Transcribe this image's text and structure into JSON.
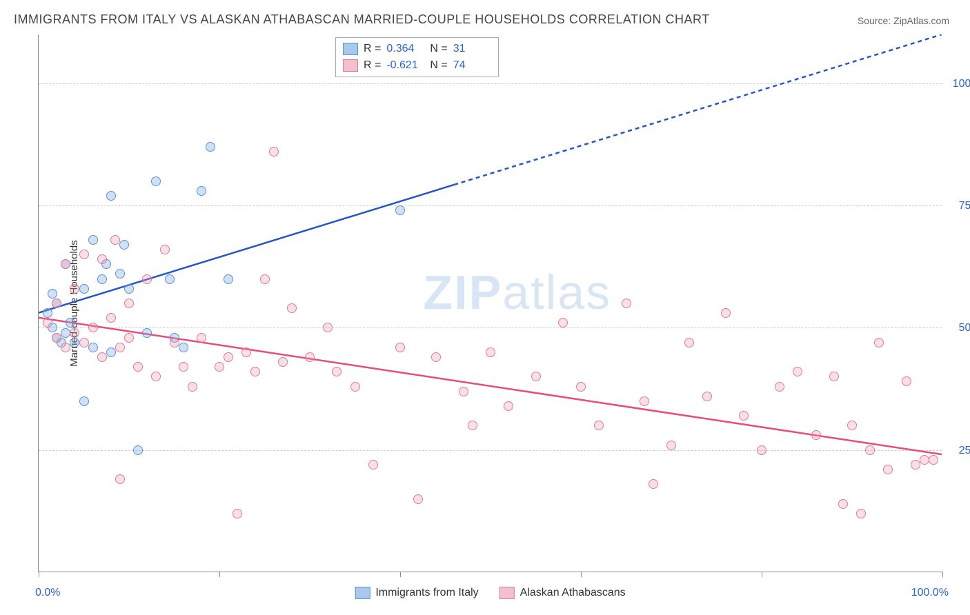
{
  "title": "IMMIGRANTS FROM ITALY VS ALASKAN ATHABASCAN MARRIED-COUPLE HOUSEHOLDS CORRELATION CHART",
  "source": "Source: ZipAtlas.com",
  "watermark_bold": "ZIP",
  "watermark_rest": "atlas",
  "y_axis_title": "Married-couple Households",
  "chart": {
    "type": "scatter-correlation",
    "background_color": "#ffffff",
    "grid_color": "#cccccc",
    "axis_color": "#888888",
    "tick_label_color": "#2962d9",
    "tick_fontsize": 16,
    "title_color": "#444444",
    "title_fontsize": 18,
    "xlim": [
      0,
      100
    ],
    "ylim": [
      0,
      110
    ],
    "x_ticks": [
      0,
      20,
      40,
      60,
      80,
      100
    ],
    "x_tick_labels": {
      "0": "0.0%",
      "100": "100.0%"
    },
    "y_gridlines": [
      25,
      50,
      75,
      100
    ],
    "y_tick_labels": {
      "25": "25.0%",
      "50": "50.0%",
      "75": "75.0%",
      "100": "100.0%"
    },
    "point_radius": 7,
    "point_stroke_width": 1.5,
    "series": [
      {
        "name": "Immigrants from Italy",
        "fill_color": "rgba(120,170,230,0.35)",
        "stroke_color": "#5a93d4",
        "swatch_fill": "#a9c9ec",
        "swatch_border": "#5a93d4",
        "R": "0.364",
        "N": "31",
        "trend": {
          "start": [
            0,
            53
          ],
          "end": [
            100,
            110
          ],
          "solid_until_x": 46,
          "color": "#2456c7",
          "width": 2.5,
          "dash": "6,5"
        },
        "points": [
          [
            1,
            53
          ],
          [
            1.5,
            50
          ],
          [
            1.5,
            57
          ],
          [
            2,
            55
          ],
          [
            2,
            48
          ],
          [
            2.5,
            47
          ],
          [
            3,
            49
          ],
          [
            3,
            63
          ],
          [
            3.5,
            51
          ],
          [
            4,
            47
          ],
          [
            5,
            58
          ],
          [
            5,
            35
          ],
          [
            6,
            68
          ],
          [
            6,
            46
          ],
          [
            7,
            60
          ],
          [
            7.5,
            63
          ],
          [
            8,
            45
          ],
          [
            8,
            77
          ],
          [
            9,
            61
          ],
          [
            9.5,
            67
          ],
          [
            10,
            58
          ],
          [
            11,
            25
          ],
          [
            12,
            49
          ],
          [
            13,
            80
          ],
          [
            14.5,
            60
          ],
          [
            15,
            48
          ],
          [
            16,
            46
          ],
          [
            18,
            78
          ],
          [
            19,
            87
          ],
          [
            21,
            60
          ],
          [
            40,
            74
          ]
        ]
      },
      {
        "name": "Alaskan Athabascans",
        "fill_color": "rgba(240,150,175,0.30)",
        "stroke_color": "#e07a9a",
        "swatch_fill": "#f3c0ce",
        "swatch_border": "#e07a9a",
        "R": "-0.621",
        "N": "74",
        "trend": {
          "start": [
            0,
            52
          ],
          "end": [
            100,
            24
          ],
          "solid_until_x": 100,
          "color": "#e94b7a",
          "width": 2.5,
          "dash": "none"
        },
        "points": [
          [
            1,
            51
          ],
          [
            2,
            48
          ],
          [
            2,
            55
          ],
          [
            3,
            46
          ],
          [
            3,
            63
          ],
          [
            4,
            49
          ],
          [
            4,
            58
          ],
          [
            5,
            47
          ],
          [
            5,
            65
          ],
          [
            6,
            50
          ],
          [
            7,
            44
          ],
          [
            7,
            64
          ],
          [
            8,
            52
          ],
          [
            8.5,
            68
          ],
          [
            9,
            46
          ],
          [
            9,
            19
          ],
          [
            10,
            48
          ],
          [
            10,
            55
          ],
          [
            11,
            42
          ],
          [
            12,
            60
          ],
          [
            13,
            40
          ],
          [
            14,
            66
          ],
          [
            15,
            47
          ],
          [
            16,
            42
          ],
          [
            17,
            38
          ],
          [
            18,
            48
          ],
          [
            20,
            42
          ],
          [
            21,
            44
          ],
          [
            22,
            12
          ],
          [
            23,
            45
          ],
          [
            24,
            41
          ],
          [
            25,
            60
          ],
          [
            26,
            86
          ],
          [
            27,
            43
          ],
          [
            28,
            54
          ],
          [
            30,
            44
          ],
          [
            32,
            50
          ],
          [
            33,
            41
          ],
          [
            35,
            38
          ],
          [
            37,
            22
          ],
          [
            40,
            46
          ],
          [
            42,
            15
          ],
          [
            44,
            44
          ],
          [
            47,
            37
          ],
          [
            48,
            30
          ],
          [
            50,
            45
          ],
          [
            52,
            34
          ],
          [
            55,
            40
          ],
          [
            58,
            51
          ],
          [
            60,
            38
          ],
          [
            62,
            30
          ],
          [
            65,
            55
          ],
          [
            67,
            35
          ],
          [
            68,
            18
          ],
          [
            70,
            26
          ],
          [
            72,
            47
          ],
          [
            74,
            36
          ],
          [
            76,
            53
          ],
          [
            78,
            32
          ],
          [
            80,
            25
          ],
          [
            82,
            38
          ],
          [
            84,
            41
          ],
          [
            86,
            28
          ],
          [
            88,
            40
          ],
          [
            89,
            14
          ],
          [
            90,
            30
          ],
          [
            91,
            12
          ],
          [
            92,
            25
          ],
          [
            93,
            47
          ],
          [
            94,
            21
          ],
          [
            96,
            39
          ],
          [
            97,
            22
          ],
          [
            98,
            23
          ],
          [
            99,
            23
          ]
        ]
      }
    ]
  }
}
